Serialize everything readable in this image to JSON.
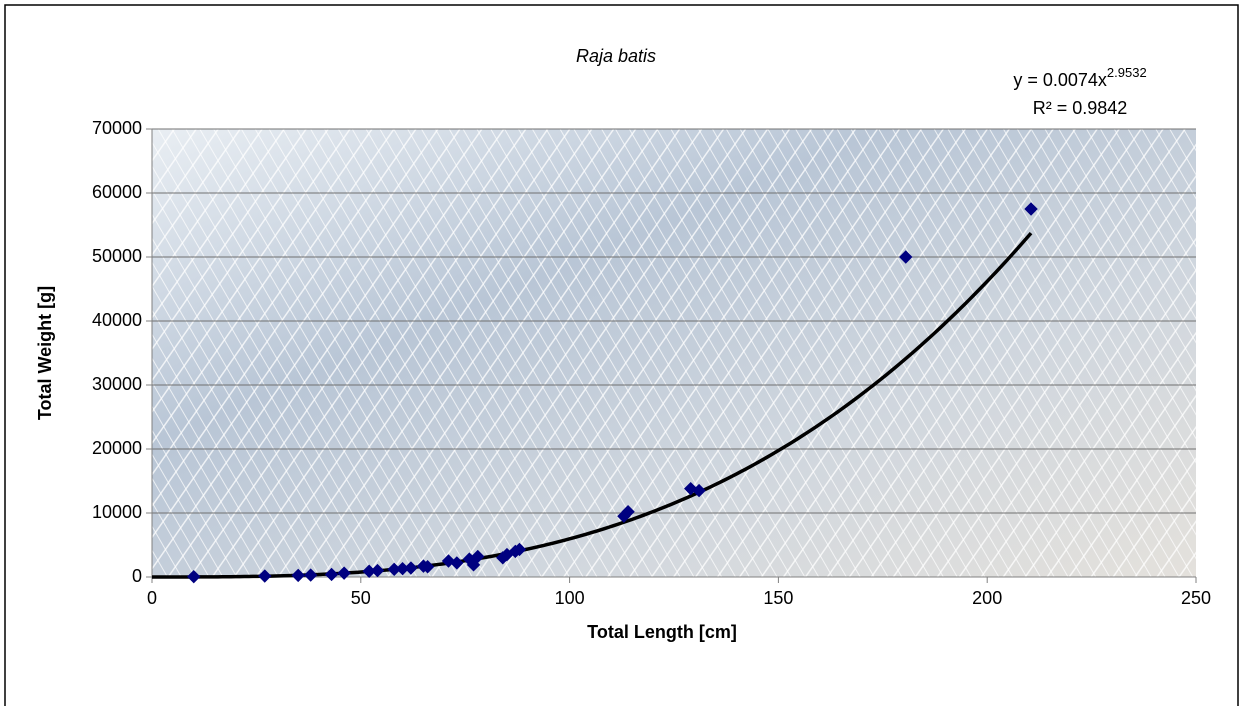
{
  "chart_data": {
    "type": "scatter",
    "title": "Raja batis",
    "x_label": "Total Length [cm]",
    "y_label": "Total Weight [g]",
    "xlim": [
      0,
      250
    ],
    "xticks": [
      0,
      50,
      100,
      150,
      200,
      250
    ],
    "ylim": [
      0,
      70000
    ],
    "yticks": [
      0,
      10000,
      20000,
      30000,
      40000,
      50000,
      60000,
      70000
    ],
    "grid": true,
    "color": "#000080",
    "x": [
      10,
      27,
      35,
      38,
      43,
      46,
      52,
      54,
      58,
      60,
      62,
      65,
      66,
      71,
      73,
      76,
      77,
      78,
      84,
      85,
      87,
      88,
      113,
      114,
      129,
      131,
      180.5,
      210.5
    ],
    "values": [
      50,
      150,
      250,
      300,
      400,
      600,
      900,
      1000,
      1200,
      1300,
      1400,
      1700,
      1600,
      2500,
      2200,
      2800,
      1900,
      3200,
      3000,
      3500,
      4000,
      4300,
      9500,
      10200,
      13800,
      13500,
      50000,
      57500
    ],
    "trendline": {
      "type": "power",
      "coefficient": 0.0074,
      "exponent": 2.9532,
      "color": "#000000",
      "label": "y = 0.0074x",
      "label_exponent": "2.9532",
      "r_squared": 0.9842,
      "r_squared_label": "R² = 0.9842"
    }
  }
}
